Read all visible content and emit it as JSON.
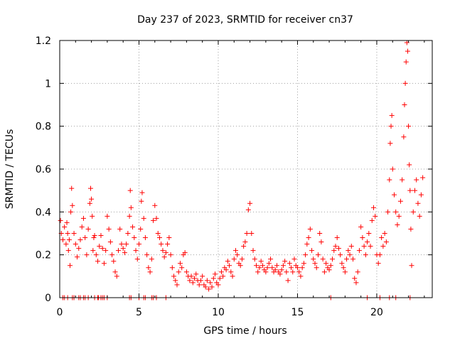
{
  "chart_data": {
    "type": "scatter",
    "title": "Day 237 of 2023, SRMTID for receiver cn37",
    "xlabel": "GPS time / hours",
    "ylabel": "SRMTID / TECUs",
    "xlim": [
      0,
      23.5
    ],
    "ylim": [
      0,
      1.2
    ],
    "x_ticks": [
      0,
      5,
      10,
      15,
      20
    ],
    "x_tick_labels": [
      "0",
      "5",
      "10",
      "15",
      "20"
    ],
    "y_ticks": [
      0,
      0.2,
      0.4,
      0.6,
      0.8,
      1.0,
      1.2
    ],
    "y_tick_labels": [
      "0",
      "0.2",
      "0.4",
      "0.6",
      "0.8",
      "1",
      "1.2"
    ],
    "grid": true,
    "marker": "+",
    "color": "#ff0000",
    "series": [
      {
        "name": "SRMTID",
        "points": [
          [
            0.05,
            0.36
          ],
          [
            0.1,
            0.3
          ],
          [
            0.2,
            0.27
          ],
          [
            0.3,
            0.33
          ],
          [
            0.4,
            0.25
          ],
          [
            0.45,
            0.35
          ],
          [
            0.5,
            0.3
          ],
          [
            0.55,
            0.22
          ],
          [
            0.6,
            0.27
          ],
          [
            0.65,
            0.15
          ],
          [
            0.7,
            0.4
          ],
          [
            0.75,
            0.51
          ],
          [
            0.8,
            0.43
          ],
          [
            0.9,
            0.3
          ],
          [
            1.0,
            0.25
          ],
          [
            1.1,
            0.19
          ],
          [
            1.2,
            0.23
          ],
          [
            1.3,
            0.27
          ],
          [
            1.4,
            0.33
          ],
          [
            1.5,
            0.37
          ],
          [
            1.6,
            0.28
          ],
          [
            1.7,
            0.2
          ],
          [
            1.8,
            0.32
          ],
          [
            1.9,
            0.44
          ],
          [
            1.95,
            0.51
          ],
          [
            2.0,
            0.46
          ],
          [
            2.05,
            0.38
          ],
          [
            2.1,
            0.22
          ],
          [
            2.15,
            0.28
          ],
          [
            2.2,
            0.29
          ],
          [
            2.3,
            0.2
          ],
          [
            2.4,
            0.17
          ],
          [
            2.5,
            0.24
          ],
          [
            2.6,
            0.29
          ],
          [
            2.7,
            0.23
          ],
          [
            2.8,
            0.16
          ],
          [
            2.9,
            0.22
          ],
          [
            3.0,
            0.38
          ],
          [
            3.1,
            0.32
          ],
          [
            3.2,
            0.26
          ],
          [
            3.3,
            0.2
          ],
          [
            3.4,
            0.17
          ],
          [
            3.5,
            0.12
          ],
          [
            3.6,
            0.1
          ],
          [
            3.7,
            0.22
          ],
          [
            3.8,
            0.32
          ],
          [
            3.9,
            0.25
          ],
          [
            4.0,
            0.23
          ],
          [
            4.1,
            0.21
          ],
          [
            4.2,
            0.25
          ],
          [
            4.3,
            0.3
          ],
          [
            4.4,
            0.38
          ],
          [
            4.45,
            0.5
          ],
          [
            4.5,
            0.42
          ],
          [
            4.6,
            0.33
          ],
          [
            4.7,
            0.28
          ],
          [
            4.8,
            0.22
          ],
          [
            4.9,
            0.18
          ],
          [
            5.0,
            0.25
          ],
          [
            5.1,
            0.32
          ],
          [
            5.15,
            0.45
          ],
          [
            5.2,
            0.49
          ],
          [
            5.3,
            0.37
          ],
          [
            5.4,
            0.28
          ],
          [
            5.5,
            0.2
          ],
          [
            5.6,
            0.14
          ],
          [
            5.7,
            0.12
          ],
          [
            5.8,
            0.18
          ],
          [
            5.9,
            0.36
          ],
          [
            6.0,
            0.43
          ],
          [
            6.1,
            0.37
          ],
          [
            6.2,
            0.3
          ],
          [
            6.3,
            0.28
          ],
          [
            6.4,
            0.25
          ],
          [
            6.5,
            0.22
          ],
          [
            6.6,
            0.19
          ],
          [
            6.7,
            0.21
          ],
          [
            6.8,
            0.25
          ],
          [
            6.9,
            0.28
          ],
          [
            7.0,
            0.2
          ],
          [
            7.1,
            0.14
          ],
          [
            7.2,
            0.1
          ],
          [
            7.3,
            0.08
          ],
          [
            7.4,
            0.06
          ],
          [
            7.5,
            0.12
          ],
          [
            7.6,
            0.16
          ],
          [
            7.7,
            0.14
          ],
          [
            7.8,
            0.2
          ],
          [
            7.9,
            0.21
          ],
          [
            8.0,
            0.12
          ],
          [
            8.1,
            0.1
          ],
          [
            8.2,
            0.08
          ],
          [
            8.3,
            0.1
          ],
          [
            8.4,
            0.07
          ],
          [
            8.5,
            0.09
          ],
          [
            8.6,
            0.11
          ],
          [
            8.7,
            0.08
          ],
          [
            8.8,
            0.06
          ],
          [
            8.9,
            0.08
          ],
          [
            9.0,
            0.1
          ],
          [
            9.1,
            0.06
          ],
          [
            9.2,
            0.05
          ],
          [
            9.3,
            0.08
          ],
          [
            9.4,
            0.04
          ],
          [
            9.5,
            0.07
          ],
          [
            9.6,
            0.05
          ],
          [
            9.7,
            0.09
          ],
          [
            9.8,
            0.11
          ],
          [
            9.9,
            0.07
          ],
          [
            10.0,
            0.06
          ],
          [
            10.1,
            0.09
          ],
          [
            10.2,
            0.12
          ],
          [
            10.3,
            0.1
          ],
          [
            10.4,
            0.14
          ],
          [
            10.5,
            0.13
          ],
          [
            10.6,
            0.17
          ],
          [
            10.7,
            0.15
          ],
          [
            10.8,
            0.12
          ],
          [
            10.9,
            0.1
          ],
          [
            11.0,
            0.18
          ],
          [
            11.1,
            0.22
          ],
          [
            11.2,
            0.2
          ],
          [
            11.3,
            0.16
          ],
          [
            11.4,
            0.15
          ],
          [
            11.5,
            0.18
          ],
          [
            11.6,
            0.24
          ],
          [
            11.7,
            0.26
          ],
          [
            11.8,
            0.3
          ],
          [
            11.9,
            0.41
          ],
          [
            12.0,
            0.44
          ],
          [
            12.1,
            0.3
          ],
          [
            12.2,
            0.22
          ],
          [
            12.3,
            0.18
          ],
          [
            12.4,
            0.15
          ],
          [
            12.5,
            0.12
          ],
          [
            12.6,
            0.14
          ],
          [
            12.7,
            0.17
          ],
          [
            12.8,
            0.15
          ],
          [
            12.9,
            0.13
          ],
          [
            13.0,
            0.12
          ],
          [
            13.1,
            0.14
          ],
          [
            13.2,
            0.16
          ],
          [
            13.3,
            0.18
          ],
          [
            13.4,
            0.14
          ],
          [
            13.5,
            0.12
          ],
          [
            13.6,
            0.13
          ],
          [
            13.7,
            0.15
          ],
          [
            13.8,
            0.12
          ],
          [
            13.9,
            0.11
          ],
          [
            14.0,
            0.13
          ],
          [
            14.1,
            0.15
          ],
          [
            14.2,
            0.17
          ],
          [
            14.3,
            0.12
          ],
          [
            14.4,
            0.08
          ],
          [
            14.5,
            0.16
          ],
          [
            14.6,
            0.14
          ],
          [
            14.7,
            0.12
          ],
          [
            14.8,
            0.18
          ],
          [
            14.9,
            0.15
          ],
          [
            15.0,
            0.14
          ],
          [
            15.1,
            0.12
          ],
          [
            15.2,
            0.1
          ],
          [
            15.3,
            0.14
          ],
          [
            15.4,
            0.16
          ],
          [
            15.5,
            0.2
          ],
          [
            15.6,
            0.25
          ],
          [
            15.7,
            0.28
          ],
          [
            15.8,
            0.32
          ],
          [
            15.9,
            0.22
          ],
          [
            16.0,
            0.18
          ],
          [
            16.1,
            0.16
          ],
          [
            16.2,
            0.14
          ],
          [
            16.3,
            0.2
          ],
          [
            16.4,
            0.3
          ],
          [
            16.5,
            0.26
          ],
          [
            16.6,
            0.18
          ],
          [
            16.7,
            0.12
          ],
          [
            16.8,
            0.16
          ],
          [
            16.9,
            0.14
          ],
          [
            17.0,
            0.13
          ],
          [
            17.1,
            0.15
          ],
          [
            17.2,
            0.18
          ],
          [
            17.3,
            0.22
          ],
          [
            17.4,
            0.24
          ],
          [
            17.5,
            0.28
          ],
          [
            17.6,
            0.23
          ],
          [
            17.7,
            0.2
          ],
          [
            17.8,
            0.16
          ],
          [
            17.9,
            0.14
          ],
          [
            18.0,
            0.12
          ],
          [
            18.1,
            0.18
          ],
          [
            18.2,
            0.22
          ],
          [
            18.3,
            0.2
          ],
          [
            18.4,
            0.24
          ],
          [
            18.5,
            0.18
          ],
          [
            18.6,
            0.09
          ],
          [
            18.7,
            0.07
          ],
          [
            18.8,
            0.12
          ],
          [
            18.9,
            0.22
          ],
          [
            19.0,
            0.33
          ],
          [
            19.1,
            0.28
          ],
          [
            19.2,
            0.24
          ],
          [
            19.3,
            0.2
          ],
          [
            19.4,
            0.26
          ],
          [
            19.5,
            0.3
          ],
          [
            19.6,
            0.24
          ],
          [
            19.7,
            0.36
          ],
          [
            19.8,
            0.42
          ],
          [
            19.9,
            0.38
          ],
          [
            20.0,
            0.2
          ],
          [
            20.1,
            0.16
          ],
          [
            20.2,
            0.2
          ],
          [
            20.3,
            0.28
          ],
          [
            20.4,
            0.24
          ],
          [
            20.5,
            0.3
          ],
          [
            20.6,
            0.26
          ],
          [
            20.7,
            0.4
          ],
          [
            20.8,
            0.55
          ],
          [
            20.85,
            0.72
          ],
          [
            20.9,
            0.8
          ],
          [
            20.95,
            0.85
          ],
          [
            21.0,
            0.6
          ],
          [
            21.1,
            0.48
          ],
          [
            21.2,
            0.4
          ],
          [
            21.3,
            0.34
          ],
          [
            21.4,
            0.38
          ],
          [
            21.5,
            0.45
          ],
          [
            21.6,
            0.55
          ],
          [
            21.7,
            0.75
          ],
          [
            21.75,
            0.9
          ],
          [
            21.8,
            1.0
          ],
          [
            21.85,
            1.1
          ],
          [
            21.9,
            1.19
          ],
          [
            21.95,
            1.15
          ],
          [
            22.0,
            0.8
          ],
          [
            22.05,
            0.62
          ],
          [
            22.1,
            0.5
          ],
          [
            22.15,
            0.32
          ],
          [
            22.2,
            0.15
          ],
          [
            22.3,
            0.4
          ],
          [
            22.4,
            0.5
          ],
          [
            22.5,
            0.55
          ],
          [
            22.6,
            0.44
          ],
          [
            22.7,
            0.38
          ],
          [
            22.8,
            0.48
          ],
          [
            22.9,
            0.56
          ]
        ],
        "zero_points_x": [
          0.2,
          0.3,
          0.5,
          0.8,
          0.9,
          1.2,
          1.3,
          1.5,
          1.6,
          1.8,
          2.2,
          2.4,
          2.45,
          2.6,
          2.7,
          2.8,
          3.0,
          4.4,
          4.5,
          5.0,
          5.3,
          5.4,
          5.8,
          5.9,
          6.1,
          6.7,
          17.1,
          19.4,
          20.2,
          20.8,
          21.2,
          22.1
        ]
      }
    ]
  }
}
